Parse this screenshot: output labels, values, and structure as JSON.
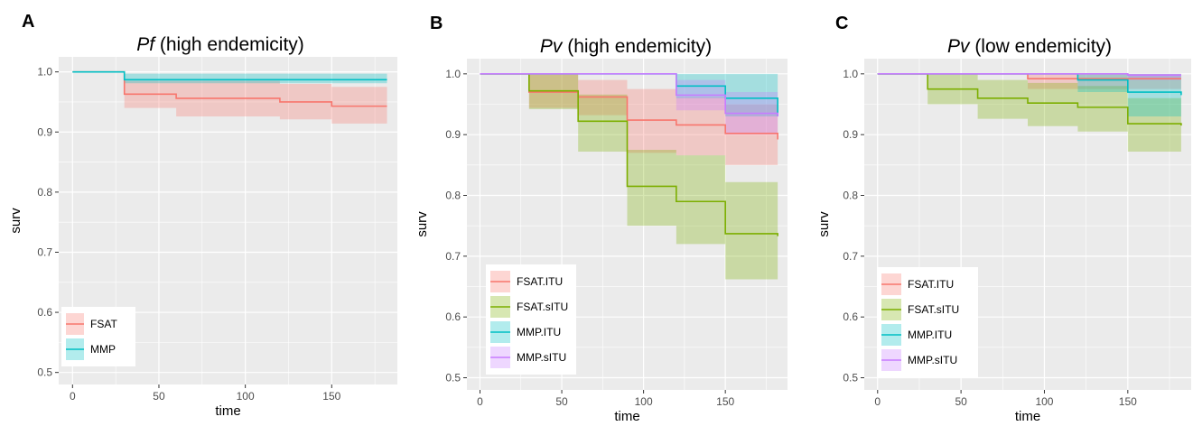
{
  "chart_data": [
    {
      "type": "line",
      "step": true,
      "panel_label": "A",
      "title_italic": "Pf",
      "title_rest": " (high endemicity)",
      "xlabel": "time",
      "ylabel": "surv",
      "xlim": [
        -8,
        188
      ],
      "ylim": [
        0.48,
        1.025
      ],
      "xticks": [
        0,
        50,
        100,
        150
      ],
      "yticks": [
        0.5,
        0.6,
        0.7,
        0.8,
        0.9,
        1.0
      ],
      "ytick_labels": [
        "0.5",
        "0.6",
        "0.7",
        "0.8",
        "0.9",
        "1.0"
      ],
      "grid": true,
      "legend_position": "bottom-left",
      "series": [
        {
          "name": "FSAT",
          "color": "#F8766D",
          "x": [
            0,
            30,
            60,
            120,
            150,
            182
          ],
          "y": [
            1.0,
            0.963,
            0.956,
            0.95,
            0.943,
            0.943
          ],
          "lower": [
            1.0,
            0.94,
            0.926,
            0.921,
            0.914,
            0.914
          ],
          "upper": [
            1.0,
            0.985,
            0.985,
            0.98,
            0.975,
            0.975
          ]
        },
        {
          "name": "MMP",
          "color": "#00BFC4",
          "x": [
            0,
            30,
            182
          ],
          "y": [
            1.0,
            0.987,
            0.987
          ],
          "lower": [
            1.0,
            0.981,
            0.981
          ],
          "upper": [
            1.0,
            0.997,
            0.997
          ]
        }
      ]
    },
    {
      "type": "line",
      "step": true,
      "panel_label": "B",
      "title_italic": "Pv",
      "title_rest": " (high endemicity)",
      "xlabel": "time",
      "ylabel": "surv",
      "xlim": [
        -8,
        188
      ],
      "ylim": [
        0.48,
        1.025
      ],
      "xticks": [
        0,
        50,
        100,
        150
      ],
      "yticks": [
        0.5,
        0.6,
        0.7,
        0.8,
        0.9,
        1.0
      ],
      "ytick_labels": [
        "0.5",
        "0.6",
        "0.7",
        "0.8",
        "0.9",
        "1.0"
      ],
      "grid": true,
      "legend_position": "bottom-left",
      "series": [
        {
          "name": "FSAT.ITU",
          "color": "#F8766D",
          "x": [
            0,
            30,
            60,
            90,
            120,
            150,
            182
          ],
          "y": [
            1.0,
            0.97,
            0.962,
            0.924,
            0.916,
            0.902,
            0.892
          ],
          "lower": [
            1.0,
            0.944,
            0.932,
            0.87,
            0.866,
            0.85,
            0.84
          ],
          "upper": [
            1.0,
            1.0,
            0.99,
            0.975,
            0.962,
            0.95,
            0.94
          ]
        },
        {
          "name": "FSAT.sITU",
          "color": "#7CAE00",
          "x": [
            0,
            30,
            60,
            90,
            120,
            150,
            182
          ],
          "y": [
            1.0,
            0.972,
            0.922,
            0.815,
            0.79,
            0.737,
            0.733
          ],
          "lower": [
            1.0,
            0.942,
            0.872,
            0.75,
            0.72,
            0.662,
            0.662
          ],
          "upper": [
            1.0,
            1.0,
            0.966,
            0.875,
            0.866,
            0.822,
            0.822
          ]
        },
        {
          "name": "MMP.ITU",
          "color": "#00BFC4",
          "x": [
            0,
            120,
            150,
            182
          ],
          "y": [
            1.0,
            0.98,
            0.96,
            0.93
          ],
          "lower": [
            1.0,
            0.96,
            0.93,
            0.93
          ],
          "upper": [
            1.0,
            1.0,
            1.0,
            1.0
          ]
        },
        {
          "name": "MMP.sITU",
          "color": "#C77CFF",
          "x": [
            0,
            120,
            150,
            182
          ],
          "y": [
            1.0,
            0.965,
            0.935,
            0.93
          ],
          "lower": [
            1.0,
            0.94,
            0.9,
            0.9
          ],
          "upper": [
            1.0,
            0.99,
            0.97,
            0.97
          ]
        }
      ]
    },
    {
      "type": "line",
      "step": true,
      "panel_label": "C",
      "title_italic": "Pv",
      "title_rest": " (low endemicity)",
      "xlabel": "time",
      "ylabel": "surv",
      "xlim": [
        -8,
        188
      ],
      "ylim": [
        0.48,
        1.025
      ],
      "xticks": [
        0,
        50,
        100,
        150
      ],
      "yticks": [
        0.5,
        0.6,
        0.7,
        0.8,
        0.9,
        1.0
      ],
      "ytick_labels": [
        "0.5",
        "0.6",
        "0.7",
        "0.8",
        "0.9",
        "1.0"
      ],
      "grid": true,
      "legend_position": "bottom-left",
      "series": [
        {
          "name": "FSAT.ITU",
          "color": "#F8766D",
          "x": [
            0,
            90,
            182
          ],
          "y": [
            1.0,
            0.992,
            0.992
          ],
          "lower": [
            1.0,
            0.975,
            0.975
          ],
          "upper": [
            1.0,
            1.0,
            1.0
          ]
        },
        {
          "name": "FSAT.sITU",
          "color": "#7CAE00",
          "x": [
            0,
            30,
            60,
            90,
            120,
            150,
            182
          ],
          "y": [
            1.0,
            0.975,
            0.96,
            0.952,
            0.945,
            0.918,
            0.915
          ],
          "lower": [
            1.0,
            0.95,
            0.926,
            0.914,
            0.905,
            0.872,
            0.872
          ],
          "upper": [
            1.0,
            1.0,
            0.99,
            0.985,
            0.98,
            0.96,
            0.96
          ]
        },
        {
          "name": "MMP.ITU",
          "color": "#00BFC4",
          "x": [
            0,
            120,
            150,
            182
          ],
          "y": [
            1.0,
            0.99,
            0.97,
            0.965
          ],
          "lower": [
            1.0,
            0.97,
            0.93,
            0.93
          ],
          "upper": [
            1.0,
            1.0,
            1.0,
            1.0
          ]
        },
        {
          "name": "MMP.sITU",
          "color": "#C77CFF",
          "x": [
            0,
            150,
            182
          ],
          "y": [
            1.0,
            0.998,
            0.998
          ],
          "lower": [
            1.0,
            0.99,
            0.99
          ],
          "upper": [
            1.0,
            1.0,
            1.0
          ]
        }
      ]
    }
  ]
}
